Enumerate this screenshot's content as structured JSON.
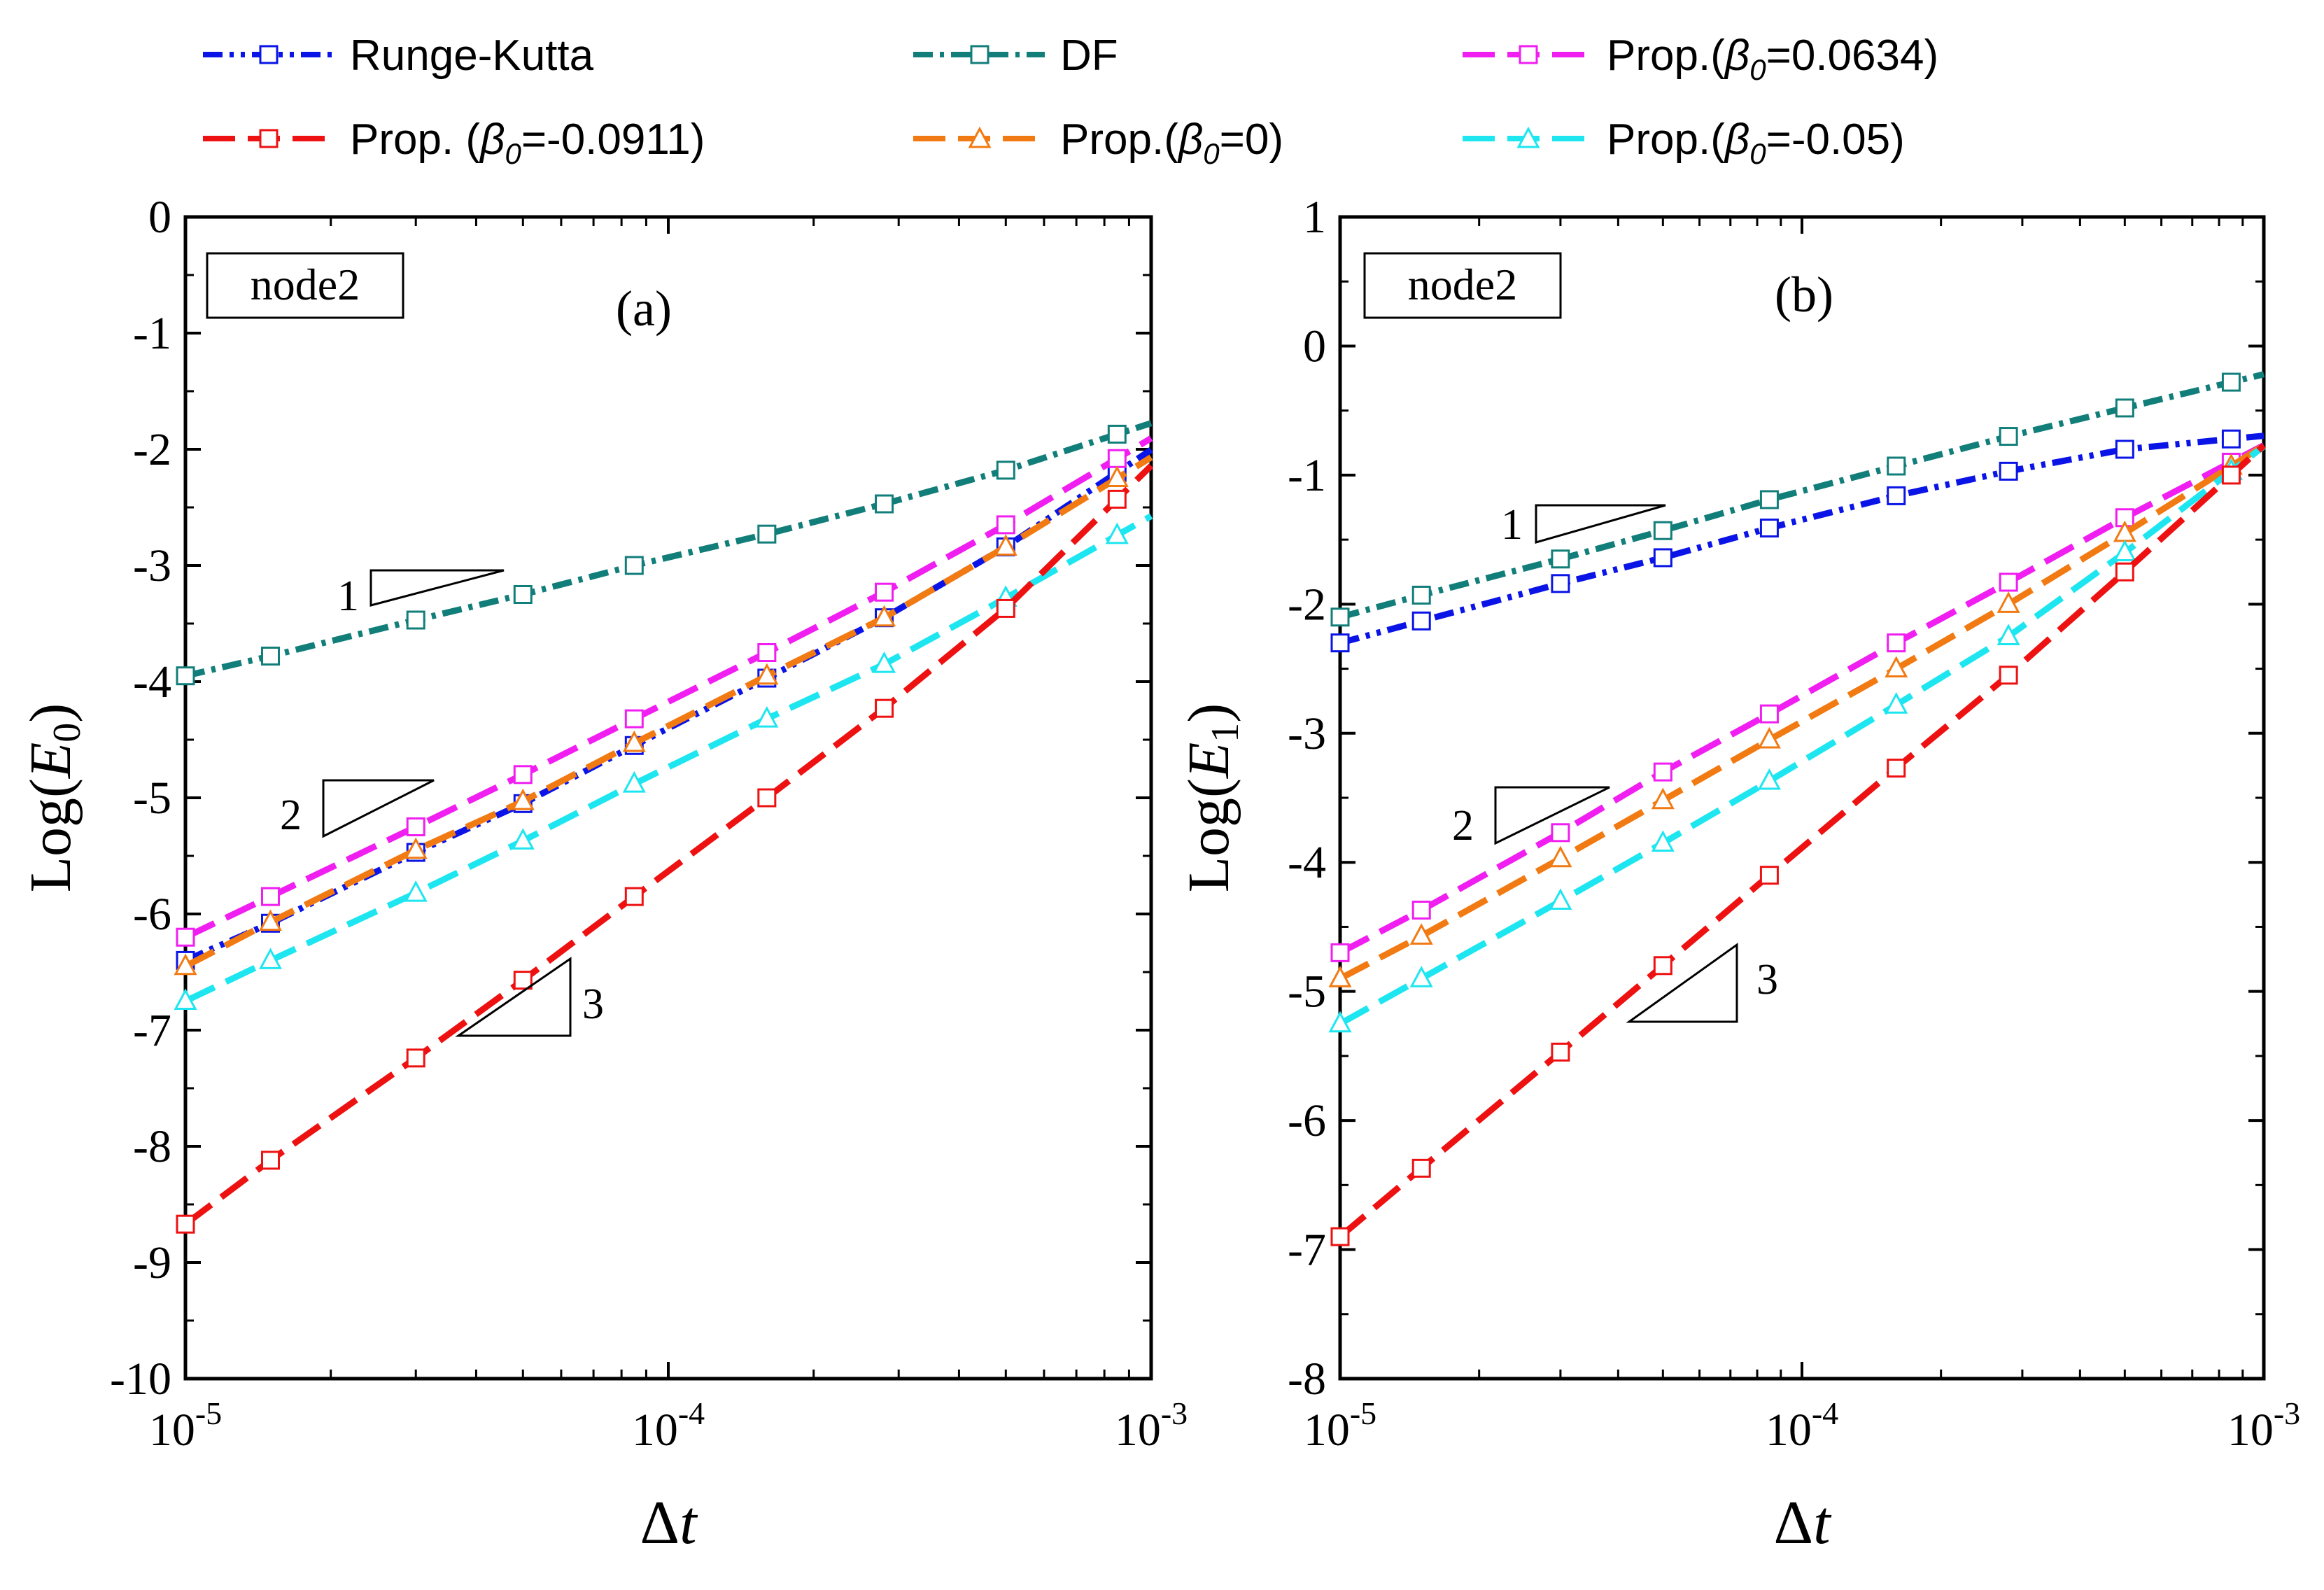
{
  "figure": {
    "legend": [
      {
        "label": "Runge-Kutta",
        "color": "#0a14e6",
        "marker": "square",
        "dash": "dashdotdot"
      },
      {
        "label": "DF",
        "color": "#127e7a",
        "marker": "square",
        "dash": "dashdot"
      },
      {
        "label_pre": "Prop.(",
        "label_sym": "β",
        "label_sub": "0",
        "label_post": "=0.0634)",
        "color": "#f01ef0",
        "marker": "square",
        "dash": "dash"
      },
      {
        "label_pre": "Prop. (",
        "label_sym": "β",
        "label_sub": "0",
        "label_post": "=-0.0911)",
        "color": "#ee1111",
        "marker": "square",
        "dash": "dash"
      },
      {
        "label_pre": "Prop.(",
        "label_sym": "β",
        "label_sub": "0",
        "label_post": "=0)",
        "color": "#f27a12",
        "marker": "triangle",
        "dash": "dash"
      },
      {
        "label_pre": "Prop.(",
        "label_sym": "β",
        "label_sub": "0",
        "label_post": "=-0.05)",
        "color": "#1ee6f0",
        "marker": "triangle",
        "dash": "dash"
      }
    ]
  },
  "chart_data": [
    {
      "type": "line",
      "panel_label": "(a)",
      "node_label": "node2",
      "ylabel_pre": "Log(",
      "ylabel_sym": "E",
      "ylabel_sub": "0",
      "ylabel_post": ")",
      "xlabel_pre": "Δ",
      "xlabel_sym": "t",
      "xscale": "log",
      "xlim": [
        1e-05,
        0.001
      ],
      "ylim": [
        -10,
        0
      ],
      "xticks": [
        {
          "base": "10",
          "exp": "-5",
          "value": 1e-05
        },
        {
          "base": "10",
          "exp": "-4",
          "value": 0.0001
        },
        {
          "base": "10",
          "exp": "-3",
          "value": 0.001
        }
      ],
      "yticks": [
        "0",
        "-1",
        "-2",
        "-3",
        "-4",
        "-5",
        "-6",
        "-7",
        "-8",
        "-9",
        "-10"
      ],
      "x": [
        1e-05,
        1.5e-05,
        3e-05,
        5e-05,
        8.5e-05,
        0.00016,
        0.00028,
        0.0005,
        0.00085
      ],
      "series": [
        {
          "name": "DF",
          "values": [
            -3.95,
            -3.78,
            -3.47,
            -3.25,
            -3.0,
            -2.73,
            -2.47,
            -2.18,
            -1.87
          ]
        },
        {
          "name": "Runge-Kutta",
          "values": [
            -6.4,
            -6.08,
            -5.47,
            -5.05,
            -4.55,
            -3.97,
            -3.45,
            -2.84,
            -2.2
          ]
        },
        {
          "name": "Prop.(β0=0.0634)",
          "values": [
            -6.2,
            -5.85,
            -5.25,
            -4.8,
            -4.32,
            -3.75,
            -3.23,
            -2.65,
            -2.08
          ]
        },
        {
          "name": "Prop.(β0=0)",
          "values": [
            -6.45,
            -6.07,
            -5.45,
            -5.03,
            -4.53,
            -3.95,
            -3.45,
            -2.84,
            -2.25
          ]
        },
        {
          "name": "Prop.(β0=-0.05)",
          "values": [
            -6.75,
            -6.4,
            -5.82,
            -5.37,
            -4.88,
            -4.32,
            -3.85,
            -3.28,
            -2.74
          ]
        },
        {
          "name": "Prop. (β0=-0.0911)",
          "values": [
            -8.67,
            -8.12,
            -7.24,
            -6.57,
            -5.85,
            -5.0,
            -4.23,
            -3.37,
            -2.43
          ]
        }
      ],
      "slope_labels": [
        "1",
        "2",
        "3"
      ]
    },
    {
      "type": "line",
      "panel_label": "(b)",
      "node_label": "node2",
      "ylabel_pre": "Log(",
      "ylabel_sym": "E",
      "ylabel_sub": "1",
      "ylabel_post": ")",
      "xlabel_pre": "Δ",
      "xlabel_sym": "t",
      "xscale": "log",
      "xlim": [
        1e-05,
        0.001
      ],
      "ylim": [
        -8,
        1
      ],
      "xticks": [
        {
          "base": "10",
          "exp": "-5",
          "value": 1e-05
        },
        {
          "base": "10",
          "exp": "-4",
          "value": 0.0001
        },
        {
          "base": "10",
          "exp": "-3",
          "value": 0.001
        }
      ],
      "yticks": [
        "1",
        "0",
        "-1",
        "-2",
        "-3",
        "-4",
        "-5",
        "-6",
        "-7",
        "-8"
      ],
      "x": [
        1e-05,
        1.5e-05,
        3e-05,
        5e-05,
        8.5e-05,
        0.00016,
        0.00028,
        0.0005,
        0.00085
      ],
      "series": [
        {
          "name": "DF",
          "values": [
            -2.1,
            -1.93,
            -1.65,
            -1.43,
            -1.19,
            -0.93,
            -0.7,
            -0.48,
            -0.28
          ]
        },
        {
          "name": "Runge-Kutta",
          "values": [
            -2.3,
            -2.13,
            -1.84,
            -1.64,
            -1.41,
            -1.16,
            -0.97,
            -0.8,
            -0.72
          ]
        },
        {
          "name": "Prop.(β0=0.0634)",
          "values": [
            -4.7,
            -4.37,
            -3.77,
            -3.3,
            -2.85,
            -2.3,
            -1.83,
            -1.33,
            -0.9
          ]
        },
        {
          "name": "Prop.(β0=0)",
          "values": [
            -4.9,
            -4.57,
            -3.97,
            -3.52,
            -3.05,
            -2.5,
            -2.0,
            -1.45,
            -0.93
          ]
        },
        {
          "name": "Prop.(β0=-0.05)",
          "values": [
            -5.25,
            -4.9,
            -4.3,
            -3.85,
            -3.37,
            -2.78,
            -2.25,
            -1.6,
            -0.97
          ]
        },
        {
          "name": "Prop. (β0=-0.0911)",
          "values": [
            -6.9,
            -6.37,
            -5.47,
            -4.8,
            -4.1,
            -3.27,
            -2.55,
            -1.75,
            -1.0
          ]
        }
      ],
      "slope_labels": [
        "1",
        "2",
        "3"
      ]
    }
  ]
}
